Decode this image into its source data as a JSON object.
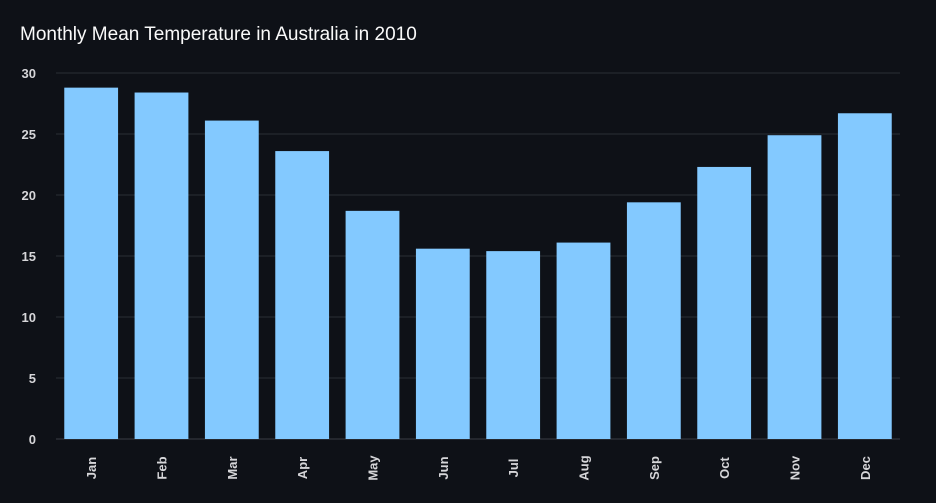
{
  "chart_data": {
    "type": "bar",
    "title": "Monthly Mean Temperature in Australia in 2010",
    "xlabel": "",
    "ylabel": "",
    "categories": [
      "Jan",
      "Feb",
      "Mar",
      "Apr",
      "May",
      "Jun",
      "Jul",
      "Aug",
      "Sep",
      "Oct",
      "Nov",
      "Dec"
    ],
    "values": [
      28.8,
      28.4,
      26.1,
      23.6,
      18.7,
      15.6,
      15.4,
      16.1,
      19.4,
      22.3,
      24.9,
      26.7
    ],
    "ylim": [
      0,
      30
    ],
    "yticks": [
      0,
      5,
      10,
      15,
      20,
      25,
      30
    ],
    "grid": true,
    "legend": "none",
    "colors": {
      "bar": "#83c9ff",
      "background": "#0e1117",
      "grid": "#2b2e36",
      "text": "#fafafa"
    }
  }
}
